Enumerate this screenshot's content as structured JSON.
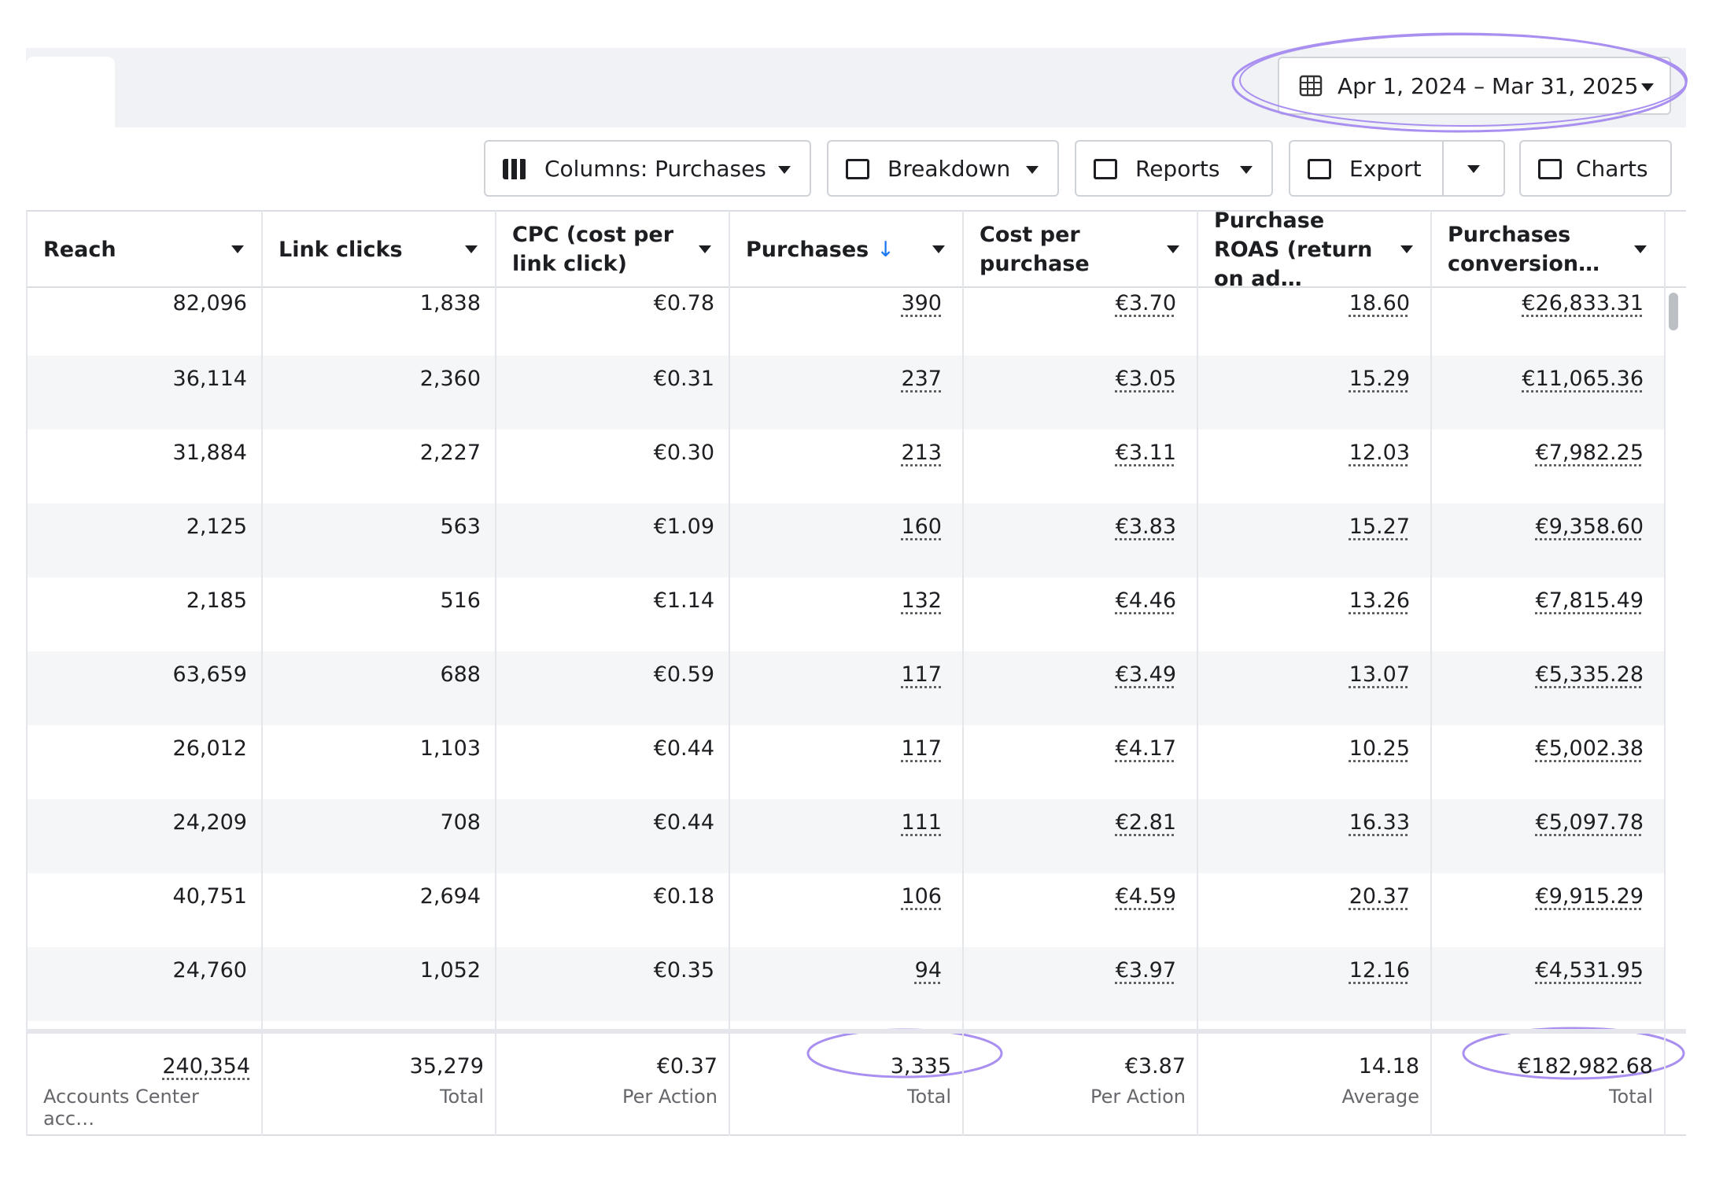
{
  "date_range": "Apr 1, 2024 – Mar 31, 2025",
  "toolbar": [
    "Columns: Purchases",
    "Breakdown",
    "Reports",
    "Export",
    "Charts"
  ],
  "table": {
    "headers": [
      "Reach",
      "Link clicks",
      "CPC (cost per link click)",
      "Purchases",
      "Cost per purchase",
      "Purchase ROAS (return on ad…",
      "Purchases conversion…"
    ],
    "rows": [
      [
        "82,096",
        "1,838",
        "€0.78",
        "390",
        "€3.70",
        "18.60",
        "€26,833.31"
      ],
      [
        "36,114",
        "2,360",
        "€0.31",
        "237",
        "€3.05",
        "15.29",
        "€11,065.36"
      ],
      [
        "31,884",
        "2,227",
        "€0.30",
        "213",
        "€3.11",
        "12.03",
        "€7,982.25"
      ],
      [
        "2,125",
        "563",
        "€1.09",
        "160",
        "€3.83",
        "15.27",
        "€9,358.60"
      ],
      [
        "2,185",
        "516",
        "€1.14",
        "132",
        "€4.46",
        "13.26",
        "€7,815.49"
      ],
      [
        "63,659",
        "688",
        "€0.59",
        "117",
        "€3.49",
        "13.07",
        "€5,335.28"
      ],
      [
        "26,012",
        "1,103",
        "€0.44",
        "117",
        "€4.17",
        "10.25",
        "€5,002.38"
      ],
      [
        "24,209",
        "708",
        "€0.44",
        "111",
        "€2.81",
        "16.33",
        "€5,097.78"
      ],
      [
        "40,751",
        "2,694",
        "€0.18",
        "106",
        "€4.59",
        "20.37",
        "€9,915.29"
      ],
      [
        "24,760",
        "1,052",
        "€0.35",
        "94",
        "€3.97",
        "12.16",
        "€4,531.95"
      ]
    ],
    "totals": [
      {
        "value": "240,354",
        "label": "Accounts Center acc…"
      },
      {
        "value": "35,279",
        "label": "Total"
      },
      {
        "value": "€0.37",
        "label": "Per Action"
      },
      {
        "value": "3,335",
        "label": "Total"
      },
      {
        "value": "€3.87",
        "label": "Per Action"
      },
      {
        "value": "14.18",
        "label": "Average"
      },
      {
        "value": "€182,982.68",
        "label": "Total"
      }
    ]
  }
}
